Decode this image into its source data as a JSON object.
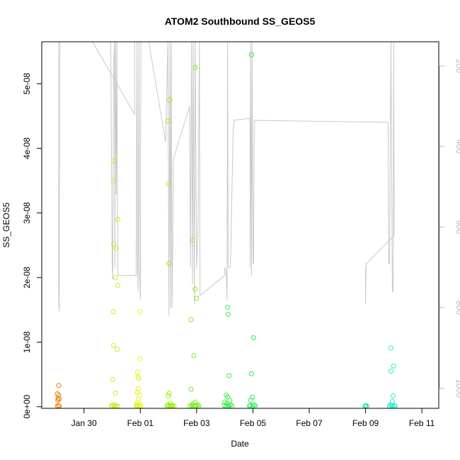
{
  "chart_data": {
    "type": "scatter",
    "title": "ATOM2 Southbound SS_GEOS5",
    "xlabel": "Date",
    "ylabel": "SS_GEOS5",
    "x_ticks": [
      "Jan 30",
      "Feb 01",
      "Feb 03",
      "Feb 05",
      "Feb 07",
      "Feb 09",
      "Feb 11"
    ],
    "y_ticks": [
      "0e+00",
      "1e-08",
      "2e-08",
      "3e-08",
      "4e-08",
      "5e-08"
    ],
    "y2_ticks": [
      "200",
      "400",
      "600",
      "800",
      "1000"
    ],
    "x_range_days_from_jan30": [
      -1.5,
      12.6
    ],
    "ylim": [
      -2.5e-10,
      5.65e-08
    ],
    "y2lim": [
      1050,
      140
    ],
    "y2_axis_color": "#b9b9b9",
    "altitude_line_color": "#c8c8c8",
    "grid": false,
    "series": [
      {
        "name": "",
        "color": "#ee7f0e",
        "points": [
          [
            -0.9,
            3.3e-09
          ],
          [
            -0.95,
            2e-09
          ],
          [
            -0.9,
            1.8e-09
          ],
          [
            -0.92,
            1.3e-09
          ],
          [
            -0.88,
            1.2e-09
          ],
          [
            -0.93,
            1e-09
          ],
          [
            -0.9,
            1.5e-10
          ],
          [
            -0.95,
            1e-10
          ],
          [
            -0.88,
            1e-10
          ]
        ]
      },
      {
        "name": "",
        "color": "#ccee22",
        "points": [
          [
            1.05,
            3.8e-08
          ],
          [
            1.05,
            3.5e-08
          ],
          [
            1.2,
            2.9e-08
          ],
          [
            1.05,
            2.52e-08
          ],
          [
            1.15,
            2.45e-08
          ],
          [
            1.12,
            2e-08
          ],
          [
            1.2,
            1.88e-08
          ],
          [
            1.05,
            1.47e-08
          ],
          [
            1.05,
            9.5e-09
          ],
          [
            1.18,
            8.9e-09
          ],
          [
            1.02,
            4.2e-09
          ],
          [
            1.12,
            2.1e-09
          ],
          [
            1.05,
            3e-10
          ],
          [
            1.1,
            2e-10
          ],
          [
            0.98,
            1.5e-10
          ],
          [
            1.15,
            1.5e-10
          ],
          [
            1.0,
            1e-10
          ],
          [
            1.08,
            1e-10
          ],
          [
            1.2,
            1e-10
          ]
        ]
      },
      {
        "name": "",
        "color": "#e6f21a",
        "points": [
          [
            1.98,
            1.47e-08
          ],
          [
            1.98,
            7.4e-09
          ],
          [
            1.9,
            5.3e-09
          ],
          [
            1.92,
            4.6e-09
          ],
          [
            1.95,
            4.4e-09
          ],
          [
            1.92,
            2.8e-09
          ],
          [
            1.9,
            2.2e-09
          ],
          [
            1.98,
            1.8e-09
          ],
          [
            1.93,
            1.2e-09
          ],
          [
            1.88,
            6e-10
          ],
          [
            2.0,
            4e-10
          ],
          [
            1.85,
            3e-10
          ],
          [
            1.9,
            2e-10
          ],
          [
            1.95,
            1.5e-10
          ],
          [
            2.02,
            1e-10
          ],
          [
            1.87,
            1e-10
          ],
          [
            1.96,
            1e-10
          ]
        ]
      },
      {
        "name": "",
        "color": "#99ee11",
        "points": [
          [
            3.05,
            4.75e-08
          ],
          [
            2.98,
            4.42e-08
          ],
          [
            3.0,
            3.45e-08
          ],
          [
            3.02,
            2.22e-08
          ],
          [
            3.03,
            2.1e-09
          ],
          [
            3.0,
            1.7e-09
          ],
          [
            3.08,
            5e-10
          ],
          [
            2.98,
            3e-10
          ],
          [
            3.1,
            2e-10
          ],
          [
            3.0,
            1.5e-10
          ],
          [
            3.05,
            1e-10
          ],
          [
            3.12,
            1e-10
          ],
          [
            2.95,
            1e-10
          ],
          [
            3.2,
            1e-10
          ],
          [
            3.15,
            1.5e-10
          ]
        ]
      },
      {
        "name": "",
        "color": "#77ee22",
        "points": [
          [
            3.95,
            5.25e-08
          ],
          [
            3.85,
            2.58e-08
          ],
          [
            3.95,
            1.82e-08
          ],
          [
            4.0,
            1.68e-08
          ],
          [
            3.8,
            1.35e-08
          ],
          [
            3.9,
            7.9e-09
          ],
          [
            3.8,
            2.7e-09
          ],
          [
            3.95,
            7e-10
          ],
          [
            3.88,
            5e-10
          ],
          [
            4.05,
            3e-10
          ],
          [
            3.82,
            2e-10
          ],
          [
            3.92,
            1.5e-10
          ],
          [
            4.0,
            1e-10
          ],
          [
            3.75,
            1e-10
          ],
          [
            3.85,
            1e-10
          ],
          [
            4.08,
            1e-10
          ],
          [
            3.98,
            2e-10
          ]
        ]
      },
      {
        "name": "",
        "color": "#33ee44",
        "points": [
          [
            5.1,
            1.54e-08
          ],
          [
            5.12,
            1.43e-08
          ],
          [
            5.15,
            4.8e-09
          ],
          [
            5.05,
            1.8e-09
          ],
          [
            5.1,
            1.5e-09
          ],
          [
            5.18,
            1e-09
          ],
          [
            5.0,
            7e-10
          ],
          [
            5.08,
            5e-10
          ],
          [
            5.2,
            3e-10
          ],
          [
            4.98,
            2e-10
          ],
          [
            5.12,
            1.5e-10
          ],
          [
            5.25,
            1e-10
          ],
          [
            5.05,
            1e-10
          ],
          [
            5.15,
            1e-10
          ]
        ]
      },
      {
        "name": "",
        "color": "#22ee55",
        "points": [
          [
            5.95,
            5.45e-08
          ],
          [
            6.02,
            1.07e-08
          ],
          [
            5.95,
            5.1e-09
          ],
          [
            5.98,
            1.5e-09
          ],
          [
            5.92,
            1e-09
          ],
          [
            6.05,
            3e-10
          ],
          [
            5.9,
            2e-10
          ],
          [
            6.0,
            1e-10
          ],
          [
            6.08,
            1e-10
          ],
          [
            5.88,
            1e-10
          ]
        ]
      },
      {
        "name": "",
        "color": "#22ddaa",
        "points": [
          [
            10.0,
            1.5e-10
          ],
          [
            10.05,
            1e-10
          ],
          [
            9.98,
            1e-10
          ]
        ]
      },
      {
        "name": "",
        "color": "#22eecc",
        "points": [
          [
            10.9,
            9.1e-09
          ],
          [
            11.0,
            6.3e-09
          ],
          [
            10.9,
            5.5e-09
          ],
          [
            10.98,
            1.7e-09
          ],
          [
            10.95,
            8e-10
          ],
          [
            10.88,
            3e-10
          ],
          [
            10.92,
            2e-10
          ],
          [
            11.02,
            1.5e-10
          ],
          [
            10.85,
            1e-10
          ],
          [
            10.96,
            1e-10
          ],
          [
            11.05,
            1e-10
          ]
        ]
      }
    ],
    "altitude_line": [
      [
        -0.9,
        140
      ],
      [
        -0.9,
        780
      ],
      [
        -0.88,
        810
      ],
      [
        -0.86,
        140
      ],
      [
        0.3,
        140
      ],
      [
        1.8,
        320
      ],
      [
        1.8,
        140
      ],
      [
        0.95,
        140
      ],
      [
        1.0,
        700
      ],
      [
        1.02,
        730
      ],
      [
        1.05,
        200
      ],
      [
        1.08,
        140
      ],
      [
        1.1,
        700
      ],
      [
        1.12,
        140
      ],
      [
        1.15,
        520
      ],
      [
        1.17,
        140
      ],
      [
        1.2,
        700
      ],
      [
        1.2,
        720
      ],
      [
        1.85,
        720
      ],
      [
        1.88,
        140
      ],
      [
        1.9,
        700
      ],
      [
        1.92,
        760
      ],
      [
        1.95,
        140
      ],
      [
        1.97,
        700
      ],
      [
        2.0,
        780
      ],
      [
        2.02,
        140
      ],
      [
        2.3,
        140
      ],
      [
        2.9,
        390
      ],
      [
        2.98,
        140
      ],
      [
        3.02,
        820
      ],
      [
        3.05,
        140
      ],
      [
        3.08,
        800
      ],
      [
        3.1,
        140
      ],
      [
        3.13,
        800
      ],
      [
        3.18,
        430
      ],
      [
        3.75,
        300
      ],
      [
        3.78,
        700
      ],
      [
        3.82,
        140
      ],
      [
        3.85,
        740
      ],
      [
        3.88,
        140
      ],
      [
        3.92,
        790
      ],
      [
        3.95,
        140
      ],
      [
        4.0,
        700
      ],
      [
        4.05,
        600
      ],
      [
        4.1,
        140
      ],
      [
        4.12,
        770
      ],
      [
        5.0,
        720
      ],
      [
        5.0,
        700
      ],
      [
        5.05,
        710
      ],
      [
        5.08,
        780
      ],
      [
        5.1,
        140
      ],
      [
        5.12,
        700
      ],
      [
        5.2,
        700
      ],
      [
        5.3,
        350
      ],
      [
        5.35,
        335
      ],
      [
        5.3,
        335
      ],
      [
        5.9,
        330
      ],
      [
        5.9,
        700
      ],
      [
        5.92,
        140
      ],
      [
        5.95,
        720
      ],
      [
        5.97,
        140
      ],
      [
        6.0,
        690
      ],
      [
        6.02,
        690
      ],
      [
        6.05,
        335
      ],
      [
        10.8,
        340
      ],
      [
        10.82,
        690
      ],
      [
        10.85,
        690
      ],
      [
        10.9,
        140
      ],
      [
        10.95,
        760
      ],
      [
        10.98,
        760
      ],
      [
        11.0,
        140
      ],
      [
        11.02,
        620
      ],
      [
        10.05,
        690
      ],
      [
        10.02,
        690
      ],
      [
        10.0,
        790
      ],
      [
        10.0,
        700
      ]
    ]
  }
}
